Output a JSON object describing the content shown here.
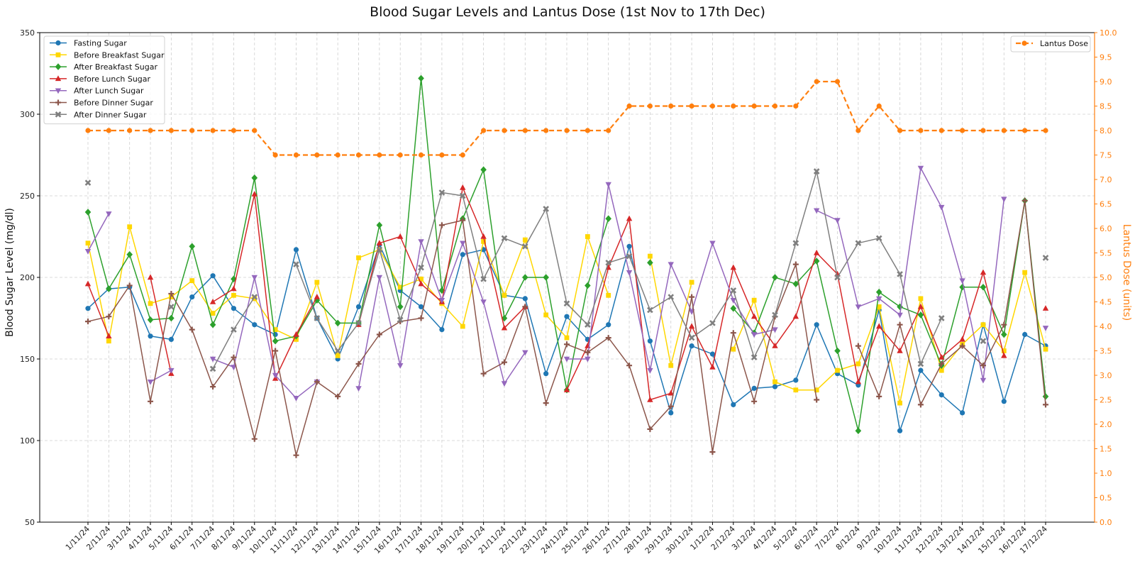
{
  "chart_data": {
    "type": "line",
    "title": "Blood Sugar Levels and Lantus Dose (1st Nov to 17th Dec)",
    "xlabel": "",
    "ylabel": "Blood Sugar Level (mg/dl)",
    "y2label": "Lantus Dose (units)",
    "ylim": [
      50,
      350
    ],
    "y2lim": [
      0,
      10
    ],
    "yticks": [
      "50",
      "100",
      "150",
      "200",
      "250",
      "300",
      "350"
    ],
    "y2ticks": [
      "0.0",
      "0.5",
      "1.0",
      "1.5",
      "2.0",
      "2.5",
      "3.0",
      "3.5",
      "4.0",
      "4.5",
      "5.0",
      "5.5",
      "6.0",
      "6.5",
      "7.0",
      "7.5",
      "8.0",
      "8.5",
      "9.0",
      "9.5",
      "10.0"
    ],
    "grid": true,
    "legend_left_placement": "top-left",
    "legend_right_placement": "top-right",
    "categories": [
      "1/11/24",
      "2/11/24",
      "3/11/24",
      "4/11/24",
      "5/11/24",
      "6/11/24",
      "7/11/24",
      "8/11/24",
      "9/11/24",
      "10/11/24",
      "11/11/24",
      "12/11/24",
      "13/11/24",
      "14/11/24",
      "15/11/24",
      "16/11/24",
      "17/11/24",
      "18/11/24",
      "19/11/24",
      "20/11/24",
      "21/11/24",
      "22/11/24",
      "23/11/24",
      "24/11/24",
      "25/11/24",
      "26/11/24",
      "27/11/24",
      "28/11/24",
      "29/11/24",
      "30/11/24",
      "1/12/24",
      "2/12/24",
      "3/12/24",
      "4/12/24",
      "5/12/24",
      "6/12/24",
      "7/12/24",
      "8/12/24",
      "9/12/24",
      "10/12/24",
      "11/12/24",
      "12/12/24",
      "13/12/24",
      "14/12/24",
      "15/12/24",
      "16/12/24",
      "17/12/24"
    ],
    "series": [
      {
        "name": "Fasting Sugar",
        "color": "#1f77b4",
        "marker": "circle",
        "axis": "left",
        "values": [
          181,
          193,
          194,
          164,
          162,
          188,
          201,
          181,
          171,
          165,
          217,
          175,
          150,
          182,
          220,
          192,
          182,
          168,
          214,
          217,
          189,
          187,
          141,
          176,
          162,
          171,
          219,
          161,
          117,
          158,
          153,
          122,
          132,
          133,
          137,
          171,
          141,
          134,
          180,
          106,
          143,
          128,
          117,
          171,
          124,
          165,
          158
        ]
      },
      {
        "name": "Before Breakfast Sugar",
        "color": "#ffd700",
        "marker": "square",
        "axis": "left",
        "values": [
          221,
          161,
          231,
          184,
          188,
          198,
          178,
          189,
          187,
          168,
          162,
          197,
          152,
          212,
          217,
          194,
          199,
          184,
          170,
          222,
          189,
          223,
          177,
          163,
          225,
          189,
          null,
          213,
          146,
          197,
          null,
          156,
          186,
          136,
          131,
          131,
          143,
          147,
          182,
          123,
          187,
          143,
          159,
          171,
          155,
          203,
          156
        ]
      },
      {
        "name": "After Breakfast Sugar",
        "color": "#2ca02c",
        "marker": "diamond",
        "axis": "left",
        "values": [
          240,
          193,
          214,
          174,
          175,
          219,
          171,
          199,
          261,
          161,
          164,
          186,
          172,
          172,
          232,
          182,
          322,
          192,
          236,
          266,
          175,
          200,
          200,
          131,
          195,
          236,
          null,
          209,
          null,
          null,
          null,
          181,
          166,
          200,
          196,
          210,
          155,
          106,
          191,
          182,
          177,
          146,
          194,
          194,
          165,
          247,
          127
        ]
      },
      {
        "name": "Before Lunch Sugar",
        "color": "#d62728",
        "marker": "triangle-up",
        "axis": "left",
        "values": [
          196,
          164,
          null,
          200,
          141,
          null,
          185,
          193,
          251,
          138,
          165,
          188,
          null,
          171,
          221,
          225,
          196,
          185,
          255,
          225,
          169,
          182,
          null,
          131,
          158,
          206,
          236,
          125,
          129,
          170,
          145,
          206,
          176,
          158,
          176,
          215,
          202,
          136,
          170,
          155,
          182,
          151,
          162,
          203,
          152,
          null,
          181
        ]
      },
      {
        "name": "After Lunch Sugar",
        "color": "#9467bd",
        "marker": "triangle-down",
        "axis": "left",
        "values": [
          216,
          239,
          null,
          136,
          143,
          null,
          150,
          145,
          200,
          140,
          126,
          136,
          null,
          132,
          200,
          146,
          222,
          186,
          221,
          185,
          135,
          154,
          null,
          150,
          150,
          257,
          203,
          143,
          208,
          179,
          221,
          186,
          165,
          168,
          null,
          241,
          235,
          182,
          187,
          177,
          267,
          243,
          198,
          137,
          248,
          null,
          169
        ]
      },
      {
        "name": "Before Dinner Sugar",
        "color": "#8c564b",
        "marker": "plus",
        "axis": "left",
        "values": [
          173,
          176,
          195,
          124,
          190,
          168,
          133,
          151,
          101,
          155,
          91,
          136,
          127,
          147,
          165,
          173,
          175,
          232,
          235,
          141,
          148,
          182,
          123,
          159,
          154,
          163,
          146,
          107,
          121,
          188,
          93,
          166,
          124,
          176,
          208,
          125,
          null,
          158,
          127,
          171,
          122,
          147,
          158,
          146,
          171,
          247,
          122
        ]
      },
      {
        "name": "After Dinner Sugar",
        "color": "#7f7f7f",
        "marker": "x",
        "axis": "left",
        "values": [
          258,
          null,
          null,
          null,
          182,
          null,
          144,
          168,
          188,
          null,
          208,
          175,
          155,
          172,
          217,
          174,
          206,
          252,
          250,
          199,
          224,
          219,
          242,
          184,
          171,
          209,
          213,
          180,
          188,
          163,
          172,
          192,
          151,
          177,
          221,
          265,
          200,
          221,
          224,
          202,
          147,
          175,
          null,
          161,
          null,
          null,
          212
        ]
      },
      {
        "name": "Lantus Dose",
        "color": "#ff7f0e",
        "marker": "circle",
        "axis": "right",
        "dashed": true,
        "values": [
          8,
          8,
          8,
          8,
          8,
          8,
          8,
          8,
          8,
          7.5,
          7.5,
          7.5,
          7.5,
          7.5,
          7.5,
          7.5,
          7.5,
          7.5,
          7.5,
          8,
          8,
          8,
          8,
          8,
          8,
          8,
          8.5,
          8.5,
          8.5,
          8.5,
          8.5,
          8.5,
          8.5,
          8.5,
          8.5,
          9,
          9,
          8,
          8.5,
          8,
          8,
          8,
          8,
          8,
          8,
          8,
          8
        ]
      }
    ]
  }
}
